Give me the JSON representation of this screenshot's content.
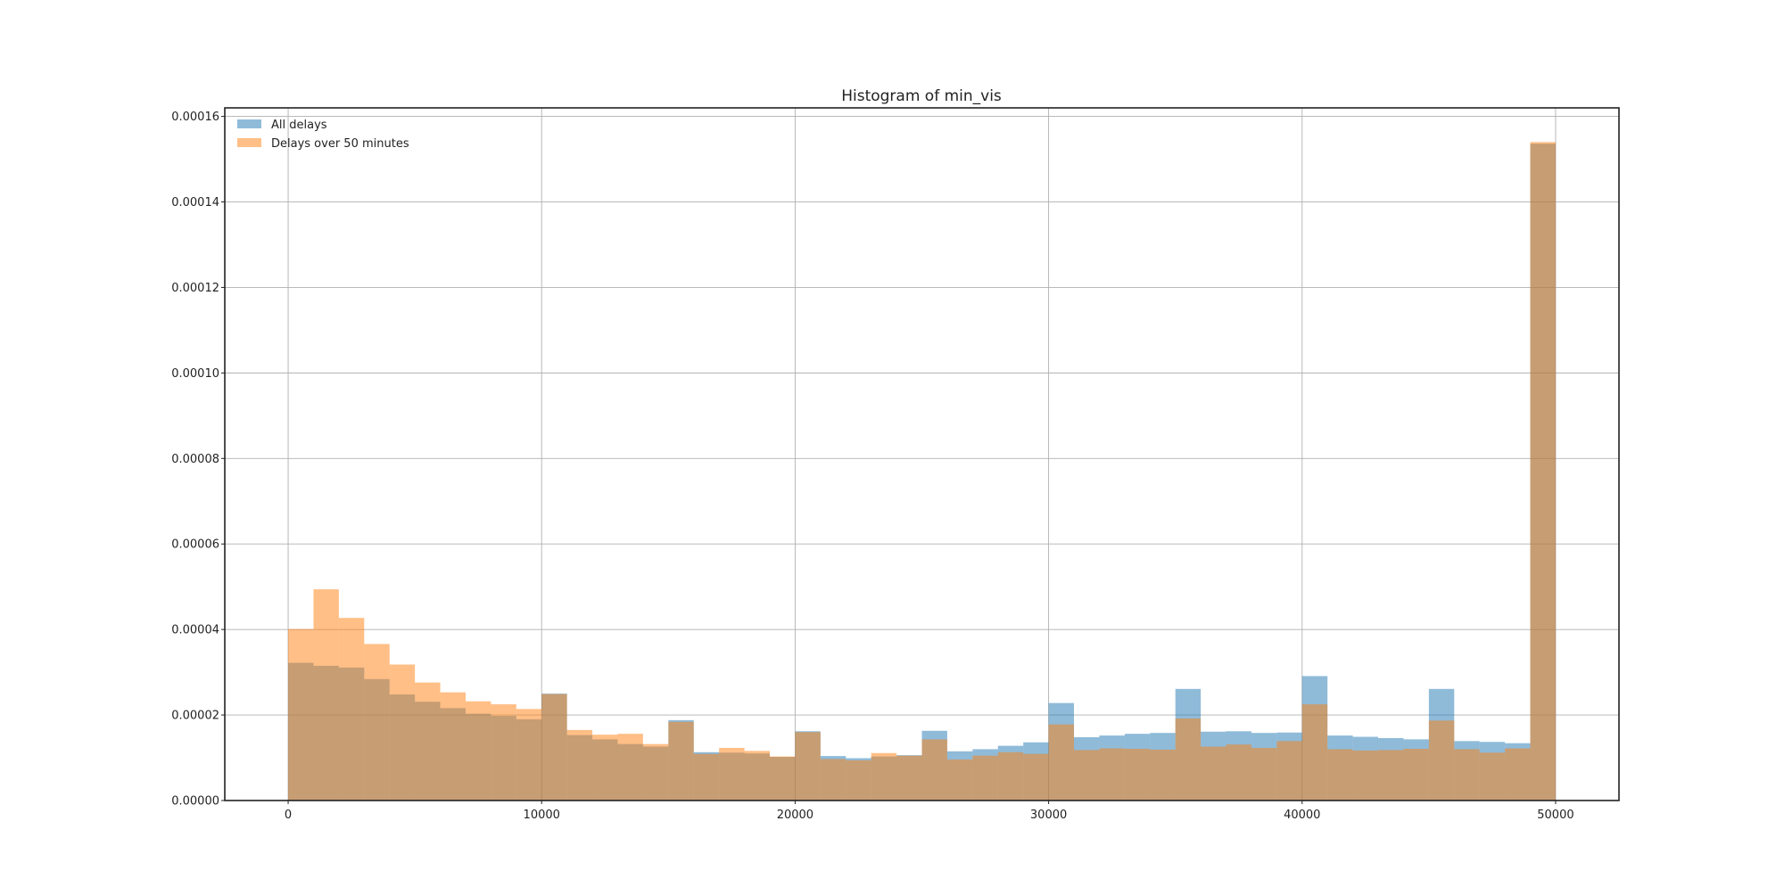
{
  "chart_data": {
    "type": "bar",
    "title": "Histogram of min_vis",
    "xlabel": "",
    "ylabel": "",
    "xlim": [
      -2500,
      52500
    ],
    "ylim": [
      0,
      0.000162
    ],
    "bin_edges": [
      0,
      1000,
      2000,
      3000,
      4000,
      5000,
      6000,
      7000,
      8000,
      9000,
      10000,
      11000,
      12000,
      13000,
      14000,
      15000,
      16000,
      17000,
      18000,
      19000,
      20000,
      21000,
      22000,
      23000,
      24000,
      25000,
      26000,
      27000,
      28000,
      29000,
      30000,
      31000,
      32000,
      33000,
      34000,
      35000,
      36000,
      37000,
      38000,
      39000,
      40000,
      41000,
      42000,
      43000,
      44000,
      45000,
      46000,
      47000,
      48000,
      49000,
      50000
    ],
    "x_ticks": [
      0,
      10000,
      20000,
      30000,
      40000,
      50000
    ],
    "x_tick_labels": [
      "0",
      "10000",
      "20000",
      "30000",
      "40000",
      "50000"
    ],
    "y_ticks": [
      0,
      2e-05,
      4e-05,
      6e-05,
      8e-05,
      0.0001,
      0.00012,
      0.00014,
      0.00016
    ],
    "y_tick_labels": [
      "0.00000",
      "0.00002",
      "0.00004",
      "0.00006",
      "0.00008",
      "0.00010",
      "0.00012",
      "0.00014",
      "0.00016"
    ],
    "grid": true,
    "legend_position": "top-left",
    "series": [
      {
        "name": "All delays",
        "color": "#1f77b4",
        "opacity": 0.5,
        "values": [
          3.22e-05,
          3.15e-05,
          3.11e-05,
          2.84e-05,
          2.48e-05,
          2.31e-05,
          2.16e-05,
          2.03e-05,
          1.98e-05,
          1.9e-05,
          2.5e-05,
          1.53e-05,
          1.43e-05,
          1.32e-05,
          1.26e-05,
          1.88e-05,
          1.13e-05,
          1.12e-05,
          1.1e-05,
          1.02e-05,
          1.62e-05,
          1.04e-05,
          9.9e-06,
          1.03e-05,
          1.06e-05,
          1.63e-05,
          1.15e-05,
          1.2e-05,
          1.28e-05,
          1.36e-05,
          2.28e-05,
          1.48e-05,
          1.52e-05,
          1.56e-05,
          1.58e-05,
          2.61e-05,
          1.61e-05,
          1.62e-05,
          1.58e-05,
          1.59e-05,
          2.91e-05,
          1.52e-05,
          1.49e-05,
          1.46e-05,
          1.43e-05,
          2.61e-05,
          1.39e-05,
          1.37e-05,
          1.34e-05,
          0.0001536
        ]
      },
      {
        "name": "Delays over 50 minutes",
        "color": "#ff7f0e",
        "opacity": 0.5,
        "values": [
          4.01e-05,
          4.94e-05,
          4.27e-05,
          3.66e-05,
          3.18e-05,
          2.76e-05,
          2.53e-05,
          2.32e-05,
          2.25e-05,
          2.14e-05,
          2.49e-05,
          1.65e-05,
          1.54e-05,
          1.56e-05,
          1.32e-05,
          1.84e-05,
          1.09e-05,
          1.23e-05,
          1.16e-05,
          1.03e-05,
          1.6e-05,
          9.7e-06,
          9.4e-06,
          1.11e-05,
          1.05e-05,
          1.43e-05,
          9.6e-06,
          1.05e-05,
          1.13e-05,
          1.09e-05,
          1.78e-05,
          1.18e-05,
          1.22e-05,
          1.21e-05,
          1.19e-05,
          1.92e-05,
          1.26e-05,
          1.31e-05,
          1.23e-05,
          1.39e-05,
          2.25e-05,
          1.2e-05,
          1.17e-05,
          1.18e-05,
          1.21e-05,
          1.87e-05,
          1.2e-05,
          1.12e-05,
          1.22e-05,
          0.000154
        ]
      }
    ]
  }
}
